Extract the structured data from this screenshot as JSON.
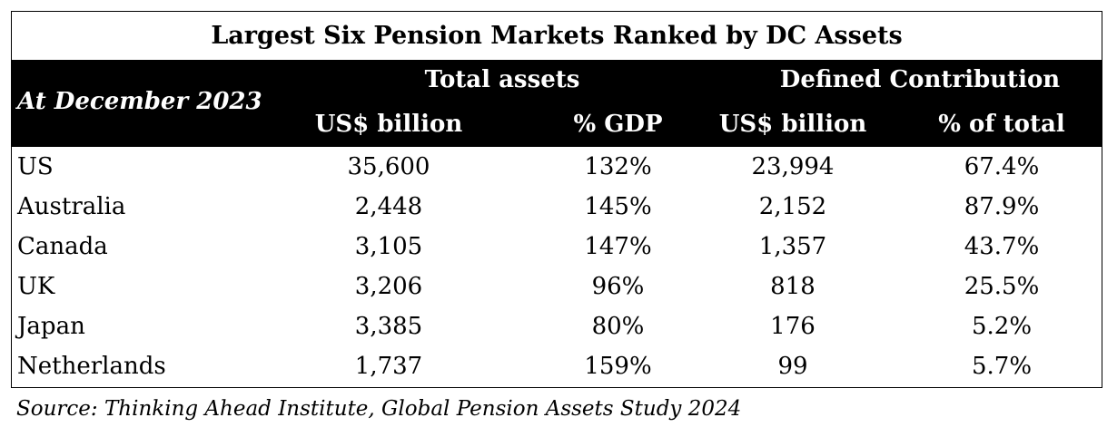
{
  "chart_data": {
    "type": "table",
    "title": "Largest Six Pension Markets Ranked by DC Assets",
    "row_header_label": "At December 2023",
    "column_groups": [
      {
        "label": "Total assets",
        "columns": [
          "US$ billion",
          "% GDP"
        ]
      },
      {
        "label": "Defined Contribution",
        "columns": [
          "US$ billion",
          "% of total"
        ]
      }
    ],
    "rows": [
      {
        "country": "US",
        "cells": [
          "35,600",
          "132%",
          "23,994",
          "67.4%"
        ]
      },
      {
        "country": "Australia",
        "cells": [
          "2,448",
          "145%",
          "2,152",
          "87.9%"
        ]
      },
      {
        "country": "Canada",
        "cells": [
          "3,105",
          "147%",
          "1,357",
          "43.7%"
        ]
      },
      {
        "country": "UK",
        "cells": [
          "3,206",
          "96%",
          "818",
          "25.5%"
        ]
      },
      {
        "country": "Japan",
        "cells": [
          "3,385",
          "80%",
          "176",
          "5.2%"
        ]
      },
      {
        "country": "Netherlands",
        "cells": [
          "1,737",
          "159%",
          "99",
          "5.7%"
        ]
      }
    ],
    "source": "Source: Thinking Ahead Institute, Global Pension Assets Study 2024"
  },
  "colors": {
    "header_background": "#000000",
    "header_text": "#ffffff"
  }
}
